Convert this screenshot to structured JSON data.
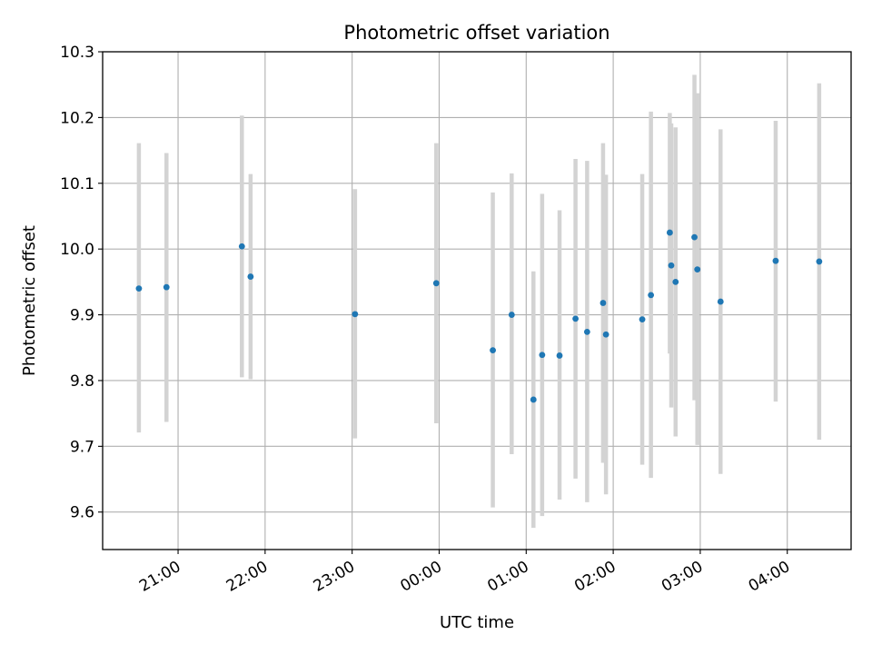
{
  "chart_data": {
    "type": "scatter",
    "title": "Photometric offset variation",
    "xlabel": "UTC time",
    "ylabel": "Photometric offset",
    "xlim": [
      "2020-01-01T20:08",
      "2020-01-02T04:44"
    ],
    "ylim": [
      9.543,
      10.3
    ],
    "grid": true,
    "x_ticks": [
      {
        "label": "21:00",
        "value": "2020-01-01T21:00"
      },
      {
        "label": "22:00",
        "value": "2020-01-01T22:00"
      },
      {
        "label": "23:00",
        "value": "2020-01-01T23:00"
      },
      {
        "label": "00:00",
        "value": "2020-01-02T00:00"
      },
      {
        "label": "01:00",
        "value": "2020-01-02T01:00"
      },
      {
        "label": "02:00",
        "value": "2020-01-02T02:00"
      },
      {
        "label": "03:00",
        "value": "2020-01-02T03:00"
      },
      {
        "label": "04:00",
        "value": "2020-01-02T04:00"
      }
    ],
    "y_ticks": [
      9.6,
      9.7,
      9.8,
      9.9,
      10.0,
      10.1,
      10.2,
      10.3
    ],
    "y_tick_labels": [
      "9.6",
      "9.7",
      "9.8",
      "9.9",
      "10.0",
      "10.1",
      "10.2",
      "10.3"
    ],
    "point_color": "#1f77b4",
    "errorbar_color": "#d3d3d3",
    "points": [
      {
        "x": "2020-01-01T20:33",
        "y": 9.94,
        "ylow": 9.721,
        "yhigh": 10.161
      },
      {
        "x": "2020-01-01T20:52",
        "y": 9.942,
        "ylow": 9.737,
        "yhigh": 10.146
      },
      {
        "x": "2020-01-01T21:44",
        "y": 10.004,
        "ylow": 9.805,
        "yhigh": 10.203
      },
      {
        "x": "2020-01-01T21:50",
        "y": 9.958,
        "ylow": 9.802,
        "yhigh": 10.114
      },
      {
        "x": "2020-01-01T23:02",
        "y": 9.901,
        "ylow": 9.712,
        "yhigh": 10.091
      },
      {
        "x": "2020-01-01T23:58",
        "y": 9.948,
        "ylow": 9.735,
        "yhigh": 10.161
      },
      {
        "x": "2020-01-02T00:37",
        "y": 9.846,
        "ylow": 9.607,
        "yhigh": 10.086
      },
      {
        "x": "2020-01-02T00:50",
        "y": 9.9,
        "ylow": 9.688,
        "yhigh": 10.115
      },
      {
        "x": "2020-01-02T01:05",
        "y": 9.771,
        "ylow": 9.576,
        "yhigh": 9.966
      },
      {
        "x": "2020-01-02T01:11",
        "y": 9.839,
        "ylow": 9.594,
        "yhigh": 10.084
      },
      {
        "x": "2020-01-02T01:23",
        "y": 9.838,
        "ylow": 9.619,
        "yhigh": 10.059
      },
      {
        "x": "2020-01-02T01:34",
        "y": 9.894,
        "ylow": 9.651,
        "yhigh": 10.137
      },
      {
        "x": "2020-01-02T01:42",
        "y": 9.874,
        "ylow": 9.615,
        "yhigh": 10.134
      },
      {
        "x": "2020-01-02T01:53",
        "y": 9.918,
        "ylow": 9.675,
        "yhigh": 10.161
      },
      {
        "x": "2020-01-02T01:55",
        "y": 9.87,
        "ylow": 9.627,
        "yhigh": 10.113
      },
      {
        "x": "2020-01-02T02:20",
        "y": 9.893,
        "ylow": 9.672,
        "yhigh": 10.114
      },
      {
        "x": "2020-01-02T02:26",
        "y": 9.93,
        "ylow": 9.652,
        "yhigh": 10.209
      },
      {
        "x": "2020-01-02T02:39",
        "y": 10.025,
        "ylow": 9.841,
        "yhigh": 10.207
      },
      {
        "x": "2020-01-02T02:40",
        "y": 9.975,
        "ylow": 9.759,
        "yhigh": 10.191
      },
      {
        "x": "2020-01-02T02:43",
        "y": 9.95,
        "ylow": 9.715,
        "yhigh": 10.185
      },
      {
        "x": "2020-01-02T02:56",
        "y": 10.018,
        "ylow": 9.77,
        "yhigh": 10.265
      },
      {
        "x": "2020-01-02T02:58",
        "y": 9.969,
        "ylow": 9.702,
        "yhigh": 10.237
      },
      {
        "x": "2020-01-02T03:14",
        "y": 9.92,
        "ylow": 9.658,
        "yhigh": 10.182
      },
      {
        "x": "2020-01-02T03:52",
        "y": 9.982,
        "ylow": 9.768,
        "yhigh": 10.195
      },
      {
        "x": "2020-01-02T04:22",
        "y": 9.981,
        "ylow": 9.71,
        "yhigh": 10.252
      }
    ]
  }
}
